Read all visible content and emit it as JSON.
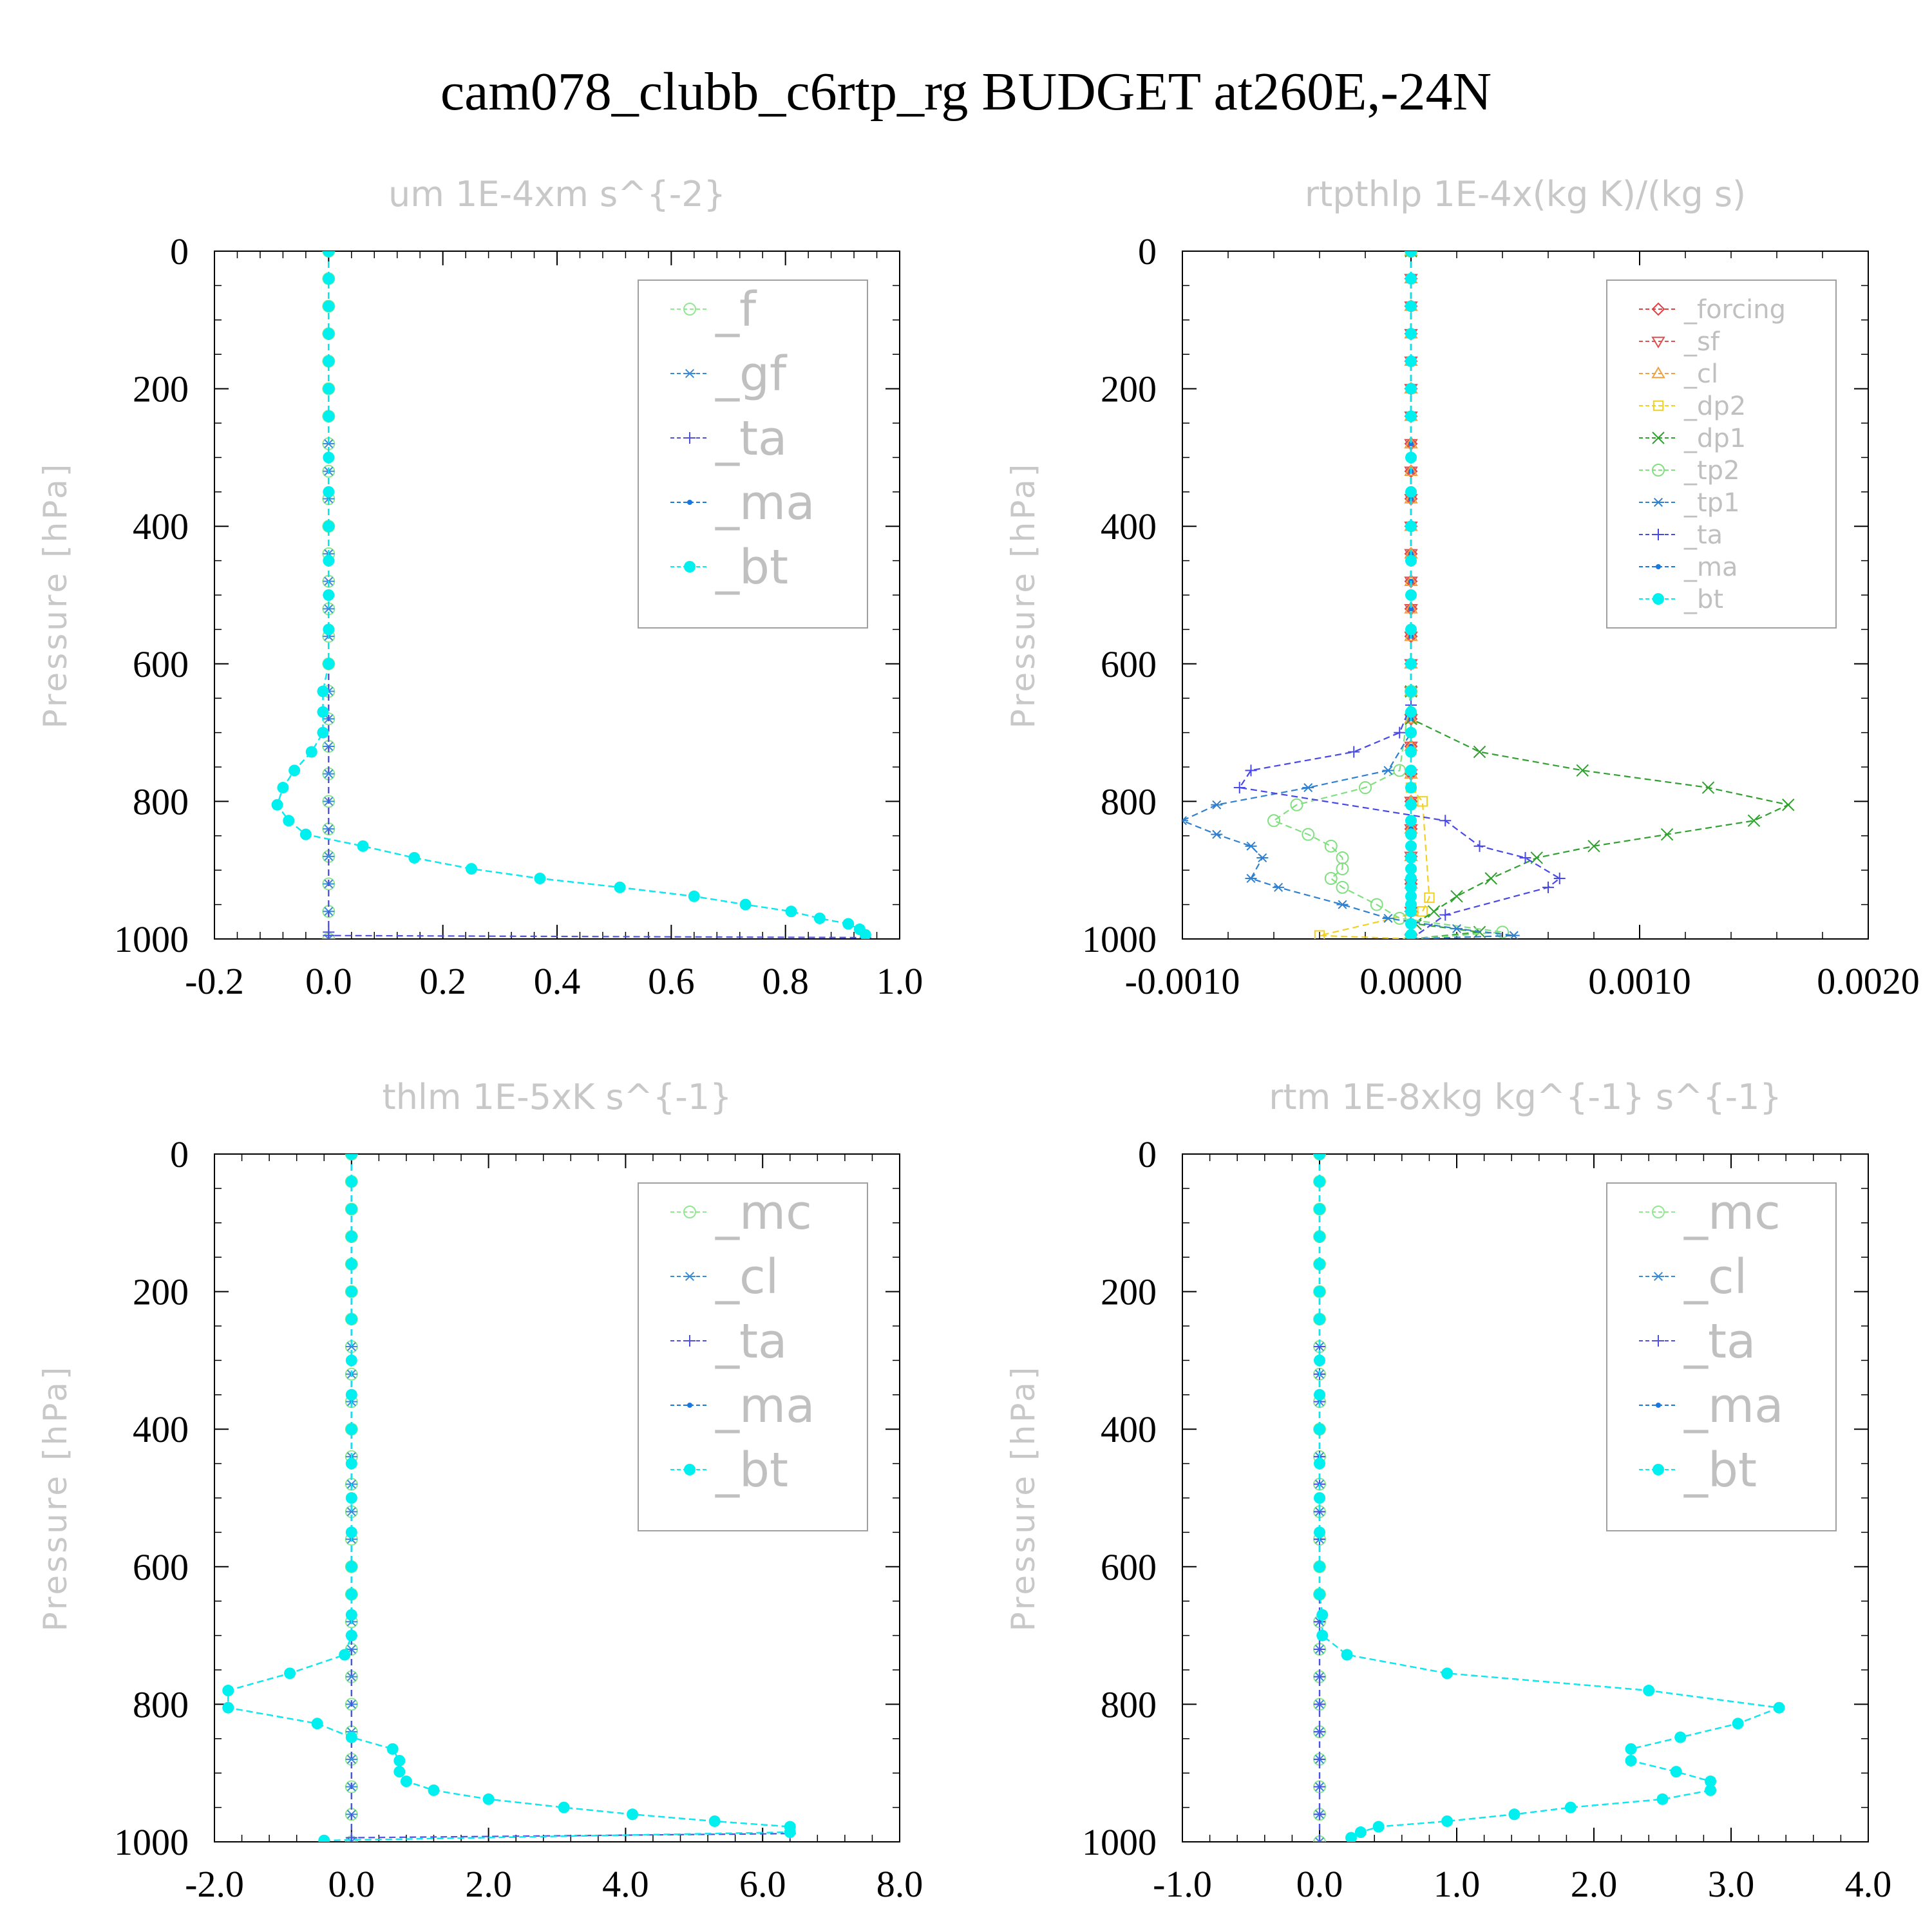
{
  "figure": {
    "title": "cam078_clubb_c6rtp_rg  BUDGET at260E,-24N"
  },
  "chart_data": [
    {
      "type": "line",
      "title": "um  1E-4xm s^{-2}",
      "ylabel": "Pressure [hPa]",
      "xlabel": "",
      "ylim": [
        1000,
        0
      ],
      "xlim": [
        -0.2,
        1.0
      ],
      "xticks": [
        "-0.2",
        "0.0",
        "0.2",
        "0.4",
        "0.6",
        "0.8",
        "1.0"
      ],
      "xtick_values": [
        -0.2,
        0.0,
        0.2,
        0.4,
        0.6,
        0.8,
        1.0
      ],
      "yticks": [
        "0",
        "200",
        "400",
        "600",
        "800",
        "1000"
      ],
      "legend": [
        "_f",
        "_gf",
        "_ta",
        "_ma",
        "_bt"
      ],
      "legend_position": "top-right",
      "grid": false,
      "series": [
        {
          "name": "_f",
          "color": "#90e890",
          "marker": "circle-open",
          "x": [
            0,
            0
          ],
          "y": [
            0,
            1000
          ]
        },
        {
          "name": "_gf",
          "color": "#3a8ad8",
          "marker": "asterisk",
          "x": [
            0,
            0
          ],
          "y": [
            0,
            1000
          ]
        },
        {
          "name": "_ta",
          "color": "#5050e0",
          "marker": "plus",
          "x": [
            0,
            0,
            0,
            0,
            0.94
          ],
          "y": [
            0,
            500,
            990,
            995,
            998
          ]
        },
        {
          "name": "_ma",
          "color": "#1878e0",
          "marker": "dot",
          "x": [
            0,
            0,
            0,
            0,
            0,
            0,
            0,
            0,
            0,
            0,
            0,
            0,
            0,
            0,
            -0.01,
            -0.01,
            -0.01,
            -0.03,
            -0.06,
            -0.08,
            -0.09,
            -0.07,
            -0.04,
            0.06,
            0.15,
            0.25,
            0.37,
            0.51,
            0.64,
            0.73,
            0.81,
            0.86,
            0.91,
            0.93,
            0.94
          ],
          "y": [
            0,
            40,
            80,
            120,
            160,
            200,
            240,
            300,
            350,
            400,
            450,
            500,
            550,
            600,
            640,
            670,
            700,
            728,
            755,
            780,
            805,
            828,
            848,
            865,
            882,
            898,
            912,
            925,
            938,
            950,
            960,
            970,
            978,
            986,
            994
          ]
        },
        {
          "name": "_bt",
          "color": "#00f0f0",
          "marker": "dot-filled",
          "x": [
            0,
            0,
            0,
            0,
            0,
            0,
            0,
            0,
            0,
            0,
            0,
            0,
            0,
            0,
            -0.01,
            -0.01,
            -0.01,
            -0.03,
            -0.06,
            -0.08,
            -0.09,
            -0.07,
            -0.04,
            0.06,
            0.15,
            0.25,
            0.37,
            0.51,
            0.64,
            0.73,
            0.81,
            0.86,
            0.91,
            0.93,
            0.94
          ],
          "y": [
            0,
            40,
            80,
            120,
            160,
            200,
            240,
            300,
            350,
            400,
            450,
            500,
            550,
            600,
            640,
            670,
            700,
            728,
            755,
            780,
            805,
            828,
            848,
            865,
            882,
            898,
            912,
            925,
            938,
            950,
            960,
            970,
            978,
            986,
            994
          ]
        }
      ]
    },
    {
      "type": "line",
      "title": "rtpthlp  1E-4x(kg K)/(kg s)",
      "ylabel": "Pressure [hPa]",
      "xlabel": "",
      "ylim": [
        1000,
        0
      ],
      "xlim": [
        -0.001,
        0.002
      ],
      "xticks": [
        "-0.0010",
        "0.0000",
        "0.0010",
        "0.0020"
      ],
      "xtick_values": [
        -0.001,
        0.0,
        0.001,
        0.002
      ],
      "yticks": [
        "0",
        "200",
        "400",
        "600",
        "800",
        "1000"
      ],
      "legend": [
        "_forcing",
        "_sf",
        "_cl",
        "_dp2",
        "_dp1",
        "_tp2",
        "_tp1",
        "_ta",
        "_ma",
        "_bt"
      ],
      "legend_position": "top-right",
      "grid": false,
      "series": [
        {
          "name": "_forcing",
          "color": "#e04040",
          "marker": "diamond",
          "x": [
            0,
            0
          ],
          "y": [
            0,
            1000
          ]
        },
        {
          "name": "_sf",
          "color": "#e05050",
          "marker": "triangle-down",
          "x": [
            0,
            0,
            0
          ],
          "y": [
            0,
            990,
            998
          ]
        },
        {
          "name": "_cl",
          "color": "#f0a040",
          "marker": "triangle-up",
          "x": [
            0,
            0
          ],
          "y": [
            0,
            1000
          ]
        },
        {
          "name": "_dp2",
          "color": "#f0d020",
          "marker": "square-open",
          "x": [
            0,
            0,
            5e-05,
            8e-05,
            5e-05,
            -0.0004,
            0
          ],
          "y": [
            0,
            780,
            800,
            940,
            960,
            995,
            1000
          ]
        },
        {
          "name": "_dp1",
          "color": "#30a030",
          "marker": "x",
          "x": [
            0,
            0,
            0,
            0.0003,
            0.00075,
            0.0013,
            0.00165,
            0.0015,
            0.00112,
            0.0008,
            0.00055,
            0.00035,
            0.0002,
            0.0001,
            2e-05,
            0.0003,
            0
          ],
          "y": [
            0,
            640,
            680,
            728,
            755,
            780,
            805,
            828,
            848,
            865,
            882,
            912,
            938,
            960,
            978,
            990,
            1000
          ]
        },
        {
          "name": "_tp2",
          "color": "#80e080",
          "marker": "circle-open",
          "x": [
            0,
            0,
            -5e-05,
            -0.0002,
            -0.0005,
            -0.0006,
            -0.00045,
            -0.00035,
            -0.0003,
            -0.0003,
            -0.00035,
            -0.0003,
            -0.00015,
            -5e-05,
            0.0004,
            0
          ],
          "y": [
            0,
            640,
            755,
            780,
            805,
            828,
            848,
            865,
            882,
            898,
            912,
            925,
            950,
            970,
            990,
            1000
          ]
        },
        {
          "name": "_tp1",
          "color": "#3080d0",
          "marker": "asterisk",
          "x": [
            0,
            0,
            -0.0001,
            -0.00045,
            -0.00085,
            -0.001,
            -0.00085,
            -0.0007,
            -0.00065,
            -0.0007,
            -0.00058,
            -0.0003,
            -0.0001,
            0.0002,
            0.00045,
            0
          ],
          "y": [
            0,
            700,
            755,
            780,
            805,
            828,
            848,
            865,
            882,
            912,
            925,
            950,
            970,
            985,
            995,
            1000
          ]
        },
        {
          "name": "_ta",
          "color": "#4848e8",
          "marker": "plus",
          "x": [
            0,
            0,
            -5e-05,
            -0.00025,
            -0.0007,
            -0.00075,
            0.00015,
            0.0003,
            0.0005,
            0.00065,
            0.0006,
            0.00015,
            0
          ],
          "y": [
            0,
            660,
            700,
            728,
            755,
            780,
            828,
            865,
            882,
            912,
            925,
            965,
            1000
          ]
        },
        {
          "name": "_ma",
          "color": "#1878e0",
          "marker": "dot",
          "x": [
            0,
            0
          ],
          "y": [
            0,
            1000
          ]
        },
        {
          "name": "_bt",
          "color": "#00f0f0",
          "marker": "dot-filled",
          "x": [
            0,
            0,
            0,
            0,
            0,
            0,
            0,
            0,
            0,
            0,
            0,
            0,
            0,
            0,
            0,
            0,
            0,
            0,
            0,
            0,
            0,
            0,
            0,
            0,
            0,
            0,
            0,
            0,
            0,
            0,
            0,
            0,
            0
          ],
          "y": [
            0,
            40,
            80,
            120,
            160,
            200,
            240,
            300,
            350,
            400,
            450,
            500,
            550,
            600,
            640,
            670,
            700,
            728,
            755,
            780,
            805,
            828,
            848,
            865,
            882,
            898,
            912,
            925,
            938,
            950,
            960,
            978,
            994
          ]
        }
      ]
    },
    {
      "type": "line",
      "title": "thlm  1E-5xK s^{-1}",
      "ylabel": "Pressure [hPa]",
      "xlabel": "",
      "ylim": [
        1000,
        0
      ],
      "xlim": [
        -2.0,
        8.0
      ],
      "xticks": [
        "-2.0",
        "0.0",
        "2.0",
        "4.0",
        "6.0",
        "8.0"
      ],
      "xtick_values": [
        -2.0,
        0.0,
        2.0,
        4.0,
        6.0,
        8.0
      ],
      "yticks": [
        "0",
        "200",
        "400",
        "600",
        "800",
        "1000"
      ],
      "legend": [
        "_mc",
        "_cl",
        "_ta",
        "_ma",
        "_bt"
      ],
      "legend_position": "top-right",
      "grid": false,
      "series": [
        {
          "name": "_mc",
          "color": "#90e890",
          "marker": "circle-open",
          "x": [
            0,
            0
          ],
          "y": [
            0,
            1000
          ]
        },
        {
          "name": "_cl",
          "color": "#3a8ad8",
          "marker": "asterisk",
          "x": [
            0,
            0
          ],
          "y": [
            0,
            1000
          ]
        },
        {
          "name": "_ta",
          "color": "#5050e0",
          "marker": "plus",
          "x": [
            0,
            0,
            0,
            6.4
          ],
          "y": [
            0,
            700,
            994,
            988
          ]
        },
        {
          "name": "_ma",
          "color": "#1878e0",
          "marker": "dot",
          "x": [
            0,
            0,
            0,
            0,
            0,
            0,
            0,
            0,
            0,
            0,
            0,
            0,
            0,
            0,
            0,
            0,
            0,
            -0.1,
            -0.9,
            -1.8,
            -1.8,
            -0.5,
            0,
            0.6,
            0.7,
            0.7,
            0.8,
            1.2,
            2.0,
            3.1,
            4.1,
            5.3,
            6.4,
            6.4,
            -0.4
          ],
          "y": [
            0,
            40,
            80,
            120,
            160,
            200,
            240,
            300,
            350,
            400,
            450,
            500,
            550,
            600,
            640,
            670,
            700,
            728,
            755,
            780,
            805,
            828,
            848,
            865,
            882,
            898,
            912,
            925,
            938,
            950,
            960,
            970,
            978,
            986,
            998
          ]
        },
        {
          "name": "_bt",
          "color": "#00f0f0",
          "marker": "dot-filled",
          "x": [
            0,
            0,
            0,
            0,
            0,
            0,
            0,
            0,
            0,
            0,
            0,
            0,
            0,
            0,
            0,
            0,
            0,
            -0.1,
            -0.9,
            -1.8,
            -1.8,
            -0.5,
            0,
            0.6,
            0.7,
            0.7,
            0.8,
            1.2,
            2.0,
            3.1,
            4.1,
            5.3,
            6.4,
            6.4,
            -0.4
          ],
          "y": [
            0,
            40,
            80,
            120,
            160,
            200,
            240,
            300,
            350,
            400,
            450,
            500,
            550,
            600,
            640,
            670,
            700,
            728,
            755,
            780,
            805,
            828,
            848,
            865,
            882,
            898,
            912,
            925,
            938,
            950,
            960,
            970,
            978,
            986,
            998
          ]
        }
      ]
    },
    {
      "type": "line",
      "title": "rtm  1E-8xkg kg^{-1} s^{-1}",
      "ylabel": "Pressure [hPa]",
      "xlabel": "",
      "ylim": [
        1000,
        0
      ],
      "xlim": [
        -1.0,
        4.0
      ],
      "xticks": [
        "-1.0",
        "0.0",
        "1.0",
        "2.0",
        "3.0",
        "4.0"
      ],
      "xtick_values": [
        -1.0,
        0.0,
        1.0,
        2.0,
        3.0,
        4.0
      ],
      "yticks": [
        "0",
        "200",
        "400",
        "600",
        "800",
        "1000"
      ],
      "legend": [
        "_mc",
        "_cl",
        "_ta",
        "_ma",
        "_bt"
      ],
      "legend_position": "top-right",
      "grid": false,
      "series": [
        {
          "name": "_mc",
          "color": "#90e890",
          "marker": "circle-open",
          "x": [
            0,
            0
          ],
          "y": [
            0,
            1000
          ]
        },
        {
          "name": "_cl",
          "color": "#3a8ad8",
          "marker": "asterisk",
          "x": [
            0,
            0
          ],
          "y": [
            0,
            1000
          ]
        },
        {
          "name": "_ta",
          "color": "#5050e0",
          "marker": "plus",
          "x": [
            0,
            0
          ],
          "y": [
            0,
            1000
          ]
        },
        {
          "name": "_ma",
          "color": "#1878e0",
          "marker": "dot",
          "x": [
            0,
            0,
            0,
            0,
            0,
            0,
            0,
            0,
            0,
            0,
            0,
            0,
            0,
            0,
            0,
            0.02,
            0.02,
            0.2,
            0.93,
            2.4,
            3.35,
            3.05,
            2.63,
            2.27,
            2.27,
            2.6,
            2.85,
            2.85,
            2.5,
            1.83,
            1.42,
            0.93,
            0.43,
            0.3,
            0.23
          ],
          "y": [
            0,
            40,
            80,
            120,
            160,
            200,
            240,
            300,
            350,
            400,
            450,
            500,
            550,
            600,
            640,
            670,
            700,
            728,
            755,
            780,
            805,
            828,
            848,
            865,
            882,
            898,
            912,
            925,
            938,
            950,
            960,
            970,
            978,
            986,
            994
          ]
        },
        {
          "name": "_bt",
          "color": "#00f0f0",
          "marker": "dot-filled",
          "x": [
            0,
            0,
            0,
            0,
            0,
            0,
            0,
            0,
            0,
            0,
            0,
            0,
            0,
            0,
            0,
            0.02,
            0.02,
            0.2,
            0.93,
            2.4,
            3.35,
            3.05,
            2.63,
            2.27,
            2.27,
            2.6,
            2.85,
            2.85,
            2.5,
            1.83,
            1.42,
            0.93,
            0.43,
            0.3,
            0.23
          ],
          "y": [
            0,
            40,
            80,
            120,
            160,
            200,
            240,
            300,
            350,
            400,
            450,
            500,
            550,
            600,
            640,
            670,
            700,
            728,
            755,
            780,
            805,
            828,
            848,
            865,
            882,
            898,
            912,
            925,
            938,
            950,
            960,
            970,
            978,
            986,
            994
          ]
        }
      ]
    }
  ]
}
